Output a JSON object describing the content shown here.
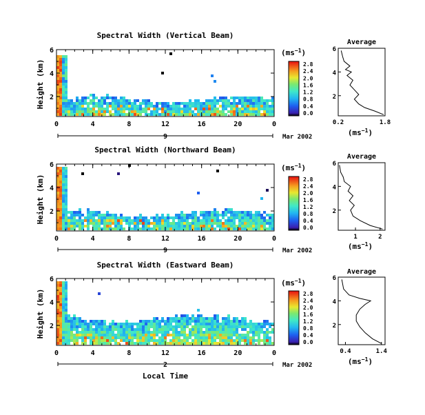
{
  "colorbar_levels": [
    "0.0",
    "0.4",
    "0.8",
    "1.2",
    "1.6",
    "2.0",
    "2.4",
    "2.8"
  ],
  "bottom_label": "Local Time",
  "chart_data": [
    {
      "type": "heatmap",
      "title": "Spectral Width (Vertical Beam)",
      "ylabel": "Height (km)",
      "unit_label": "(ms",
      "unit_exp": "−1",
      "x_ticks": [
        "0",
        "4",
        "8",
        "12",
        "16",
        "20",
        "0"
      ],
      "y_ticks": [
        "2",
        "4",
        "6"
      ],
      "day_label": "9",
      "month_label": "Mar 2002",
      "xlim": [
        0,
        24
      ],
      "ylim": [
        0.3,
        6.0
      ],
      "color_scale": [
        "0.0",
        "0.4",
        "0.8",
        "1.2",
        "1.6",
        "2.0",
        "2.4",
        "2.8"
      ],
      "average": {
        "title": "Average",
        "x_ticks": [
          "0.2",
          "1.8"
        ],
        "xlim": [
          0.2,
          1.8
        ],
        "xlabel": "(ms",
        "xlabel_exp": "−1",
        "y_ticks": [
          "2",
          "4",
          "6"
        ],
        "profile": [
          [
            1.75,
            0.4
          ],
          [
            1.45,
            0.7
          ],
          [
            1.1,
            1.0
          ],
          [
            0.9,
            1.3
          ],
          [
            0.75,
            1.7
          ],
          [
            0.9,
            2.1
          ],
          [
            0.75,
            2.5
          ],
          [
            0.6,
            2.9
          ],
          [
            0.7,
            3.3
          ],
          [
            0.5,
            3.7
          ],
          [
            0.65,
            4.0
          ],
          [
            0.45,
            4.2
          ],
          [
            0.6,
            4.5
          ],
          [
            0.4,
            4.9
          ],
          [
            0.35,
            5.3
          ],
          [
            0.3,
            5.8
          ]
        ]
      }
    },
    {
      "type": "heatmap",
      "title": "Spectral Width (Northward Beam)",
      "ylabel": "Height (km)",
      "unit_label": "(ms",
      "unit_exp": "−1",
      "x_ticks": [
        "0",
        "4",
        "8",
        "12",
        "16",
        "20",
        "0"
      ],
      "y_ticks": [
        "2",
        "4",
        "6"
      ],
      "day_label": "9",
      "month_label": "Mar 2002",
      "xlim": [
        0,
        24
      ],
      "ylim": [
        0.3,
        6.0
      ],
      "color_scale": [
        "0.0",
        "0.4",
        "0.8",
        "1.2",
        "1.6",
        "2.0",
        "2.4",
        "2.8"
      ],
      "average": {
        "title": "Average",
        "x_ticks": [
          "1",
          "2"
        ],
        "xlim": [
          0.3,
          2.2
        ],
        "xlabel": "(ms",
        "xlabel_exp": "−1",
        "y_ticks": [
          "2",
          "4",
          "6"
        ],
        "profile": [
          [
            2.1,
            0.4
          ],
          [
            1.6,
            0.7
          ],
          [
            1.2,
            1.1
          ],
          [
            0.9,
            1.5
          ],
          [
            0.8,
            2.0
          ],
          [
            0.95,
            2.4
          ],
          [
            0.75,
            2.8
          ],
          [
            0.9,
            3.2
          ],
          [
            0.7,
            3.6
          ],
          [
            0.8,
            4.0
          ],
          [
            0.55,
            4.4
          ],
          [
            0.5,
            4.8
          ],
          [
            0.4,
            5.2
          ],
          [
            0.35,
            5.8
          ]
        ]
      }
    },
    {
      "type": "heatmap",
      "title": "Spectral Width (Eastward Beam)",
      "ylabel": "Height (km)",
      "unit_label": "(ms",
      "unit_exp": "−1",
      "x_ticks": [
        "0",
        "4",
        "8",
        "12",
        "16",
        "20",
        "0"
      ],
      "y_ticks": [
        "2",
        "4",
        "6"
      ],
      "day_label": "2",
      "month_label": "Mar 2002",
      "xlim": [
        0,
        24
      ],
      "ylim": [
        0.3,
        6.0
      ],
      "color_scale": [
        "0.0",
        "0.4",
        "0.8",
        "1.2",
        "1.6",
        "2.0",
        "2.4",
        "2.8"
      ],
      "average": {
        "title": "Average",
        "x_ticks": [
          "0.4",
          "1.4"
        ],
        "xlim": [
          0.2,
          1.5
        ],
        "xlabel": "(ms",
        "xlabel_exp": "−1",
        "y_ticks": [
          "2",
          "4",
          "6"
        ],
        "profile": [
          [
            1.4,
            0.4
          ],
          [
            1.15,
            0.8
          ],
          [
            0.95,
            1.3
          ],
          [
            0.8,
            1.8
          ],
          [
            0.7,
            2.3
          ],
          [
            0.7,
            2.8
          ],
          [
            0.8,
            3.3
          ],
          [
            0.95,
            3.7
          ],
          [
            1.1,
            4.0
          ],
          [
            0.8,
            4.2
          ],
          [
            0.5,
            4.5
          ],
          [
            0.35,
            5.0
          ],
          [
            0.3,
            5.8
          ]
        ]
      }
    }
  ]
}
